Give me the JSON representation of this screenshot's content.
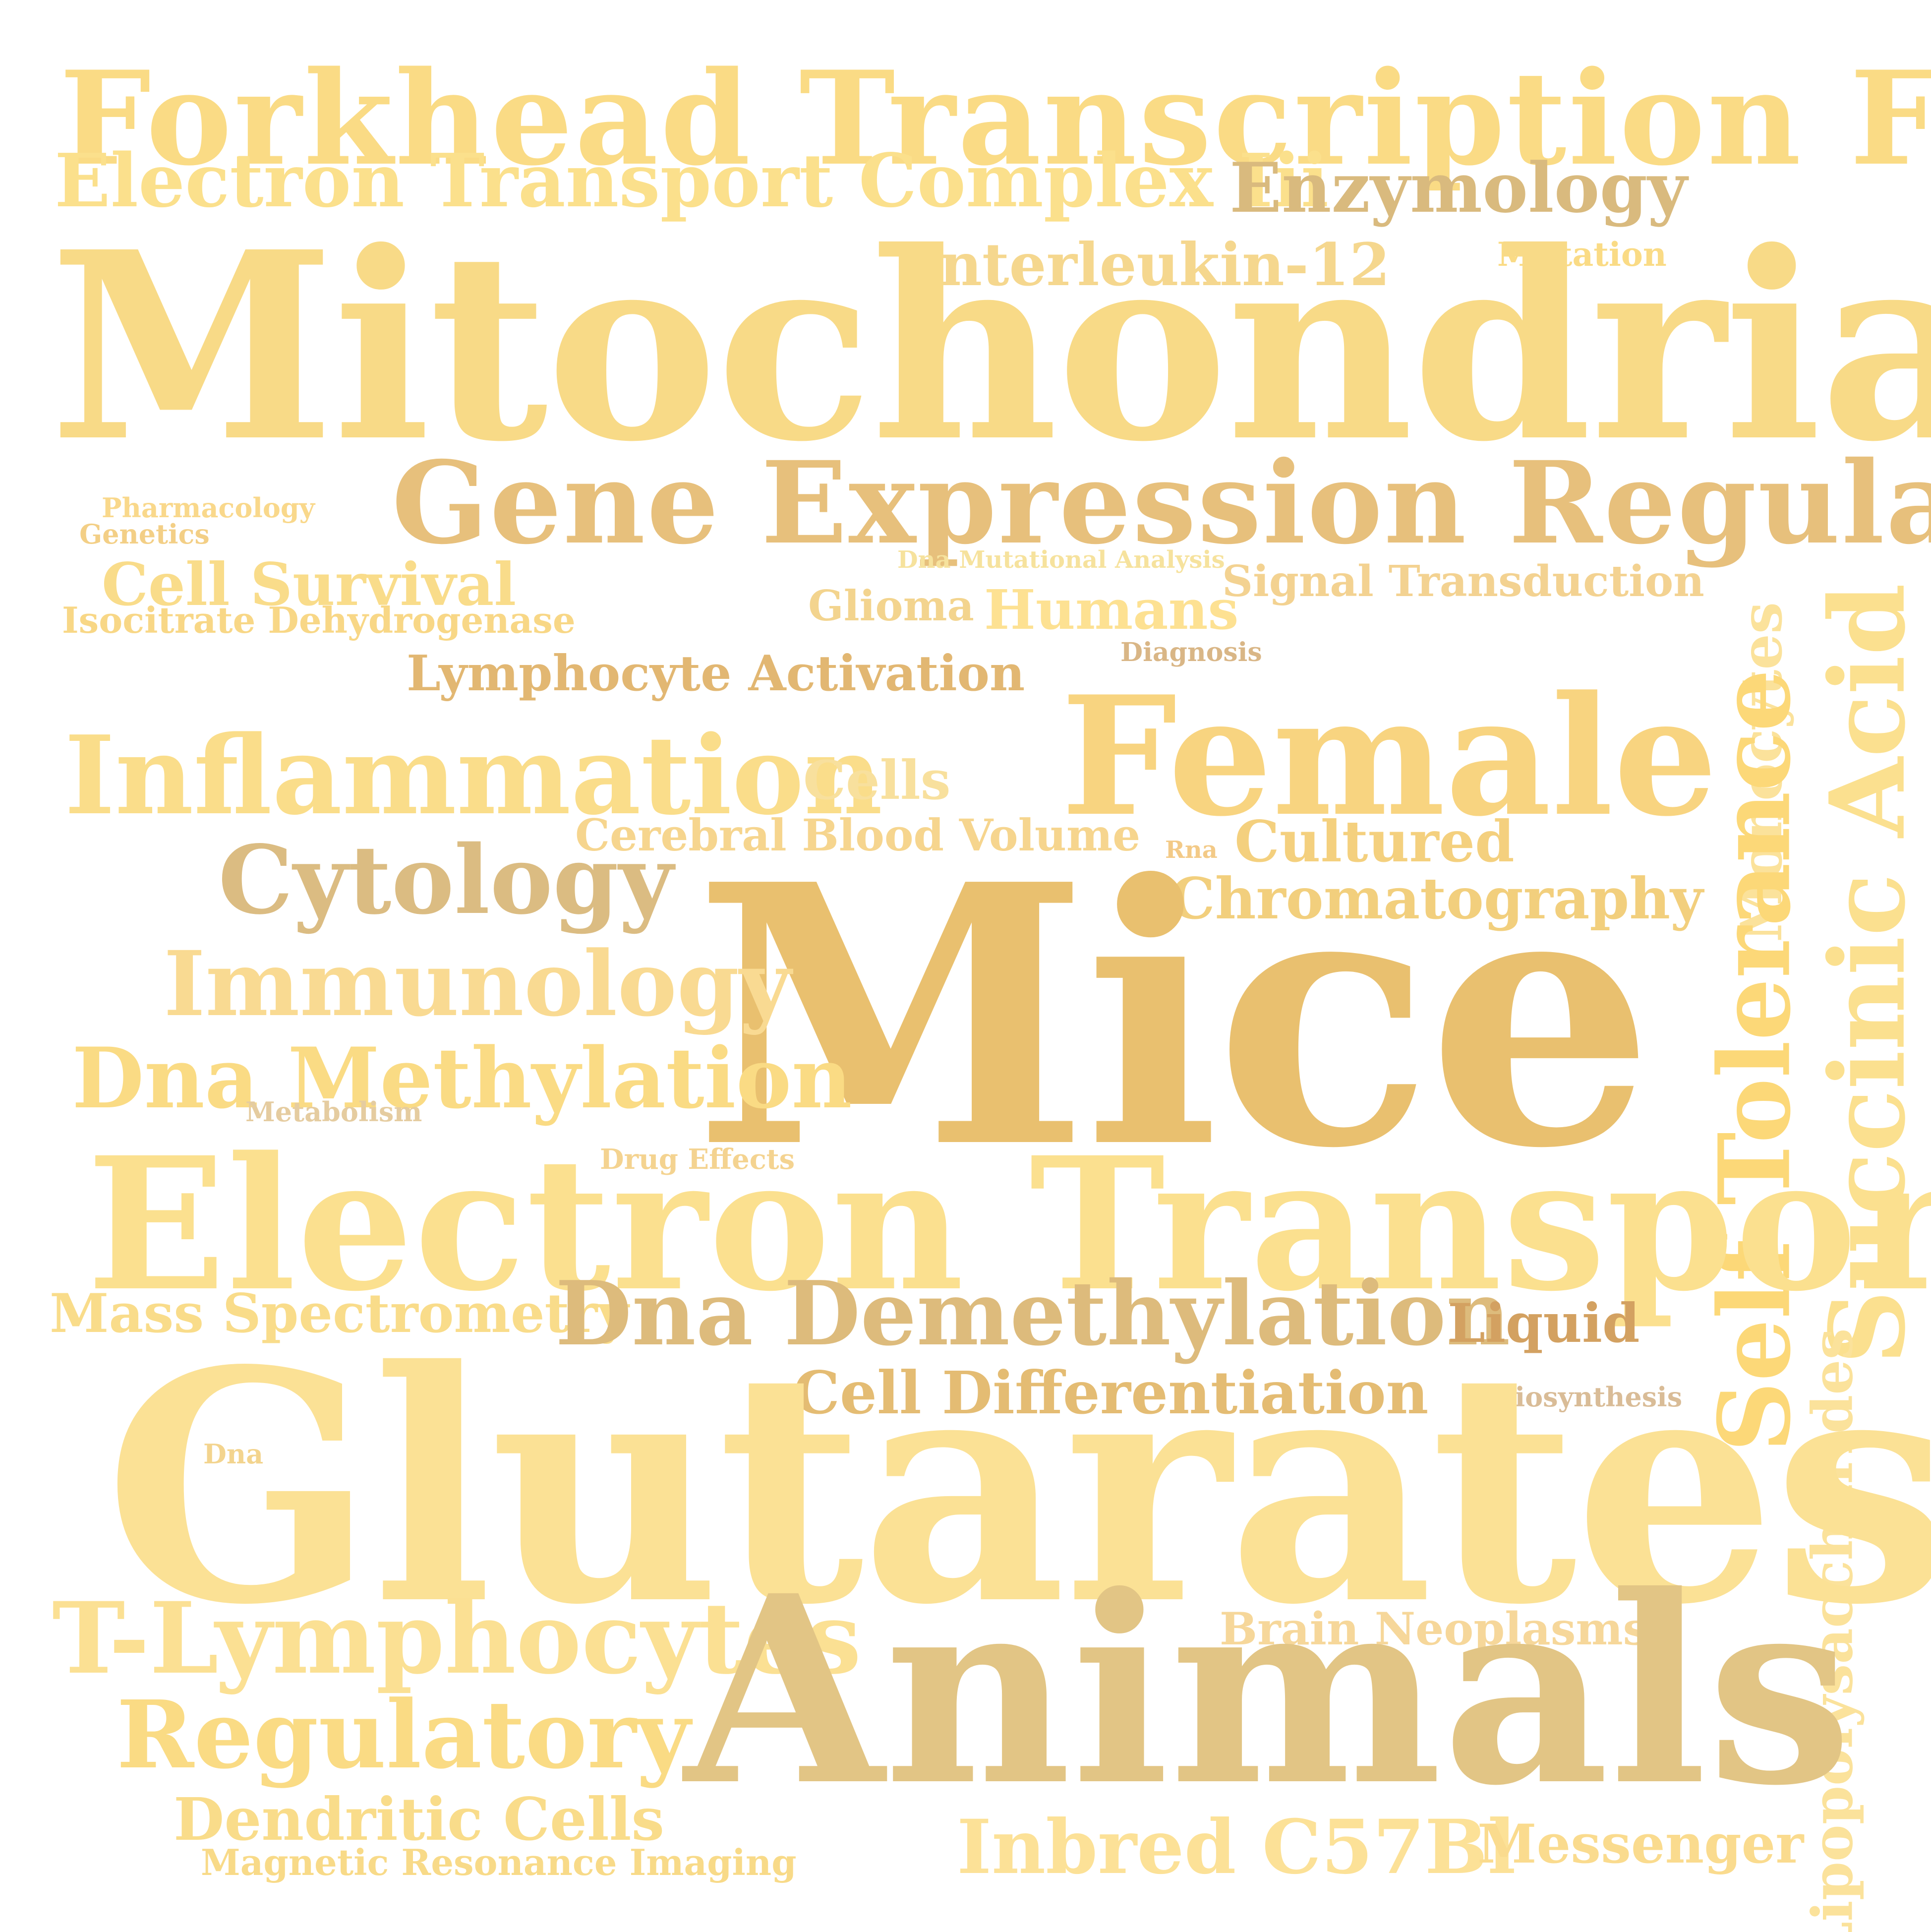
{
  "words": [
    {
      "text": "Forkhead Transcription Factors",
      "color": "#FADB85"
    },
    {
      "text": "Electron Transport Complex Iii",
      "color": "#FBE08C"
    },
    {
      "text": "Enzymology",
      "color": "#D9BA7E"
    },
    {
      "text": "Interleukin-12",
      "color": "#F5D78E"
    },
    {
      "text": "Mutation",
      "color": "#FADB85"
    },
    {
      "text": "Mitochondria",
      "color": "#F8DA87"
    },
    {
      "text": "Gene Expression Regulation",
      "color": "#E7C07C"
    },
    {
      "text": "Pharmacology",
      "color": "#F9D88B"
    },
    {
      "text": "Genetics",
      "color": "#F3CF86"
    },
    {
      "text": "Cell Survival",
      "color": "#F9DC8A"
    },
    {
      "text": "Isocitrate Dehydrogenase",
      "color": "#F8D786"
    },
    {
      "text": "Dna Mutational Analysis",
      "color": "#F6E29D"
    },
    {
      "text": "Signal Transduction",
      "color": "#F3D291"
    },
    {
      "text": "Glioma",
      "color": "#F3D48E"
    },
    {
      "text": "Humans",
      "color": "#FDE192"
    },
    {
      "text": "Diagnosis",
      "color": "#D9B686"
    },
    {
      "text": "Lymphocyte Activation",
      "color": "#E2B772"
    },
    {
      "text": "Female",
      "color": "#F8D480"
    },
    {
      "text": "Inflammation",
      "color": "#FADD8A"
    },
    {
      "text": "Cells",
      "color": "#F8E09D"
    },
    {
      "text": "Cerebral Blood Volume",
      "color": "#F6D58E"
    },
    {
      "text": "Rna",
      "color": "#F3CA87"
    },
    {
      "text": "Cultured",
      "color": "#F4D07E"
    },
    {
      "text": "Monocytes",
      "color": "#FBE29B"
    },
    {
      "text": "Self Tolerance",
      "color": "#FCD878"
    },
    {
      "text": "Succinic Acid",
      "color": "#FBE08F"
    },
    {
      "text": "Cytology",
      "color": "#DBBC82"
    },
    {
      "text": "Chromatography",
      "color": "#F2CF7D"
    },
    {
      "text": "Mice",
      "color": "#E9C06F"
    },
    {
      "text": "Immunology",
      "color": "#F9DA92"
    },
    {
      "text": "Dna Methylation",
      "color": "#FADB84"
    },
    {
      "text": "Metabolism",
      "color": "#E5CCA0"
    },
    {
      "text": "Drug Effects",
      "color": "#F4D390"
    },
    {
      "text": "Electron Transport",
      "color": "#FBE08F"
    },
    {
      "text": "Mass Spectrometry",
      "color": "#F9DC8A"
    },
    {
      "text": "Dna Demethylation",
      "color": "#DDBB7C"
    },
    {
      "text": "Liquid",
      "color": "#D3A161"
    },
    {
      "text": "Cell Differentiation",
      "color": "#E4BC73"
    },
    {
      "text": "Biosynthesis",
      "color": "#D9BC97"
    },
    {
      "text": "Lipopolysaccharides",
      "color": "#FBE29B"
    },
    {
      "text": "Dna",
      "color": "#F3D48E"
    },
    {
      "text": "Glutarates",
      "color": "#FBE195"
    },
    {
      "text": "Brain Neoplasms",
      "color": "#F6D79A"
    },
    {
      "text": "T-Lymphocytes",
      "color": "#FBE093"
    },
    {
      "text": "Animals",
      "color": "#E2C585"
    },
    {
      "text": "Regulatory",
      "color": "#FADB84"
    },
    {
      "text": "Dendritic Cells",
      "color": "#F9DC8A"
    },
    {
      "text": "Magnetic Resonance Imaging",
      "color": "#F8DA88"
    },
    {
      "text": "Inbred C57Bl",
      "color": "#FCE197"
    },
    {
      "text": "Messenger",
      "color": "#FADB8E"
    }
  ]
}
